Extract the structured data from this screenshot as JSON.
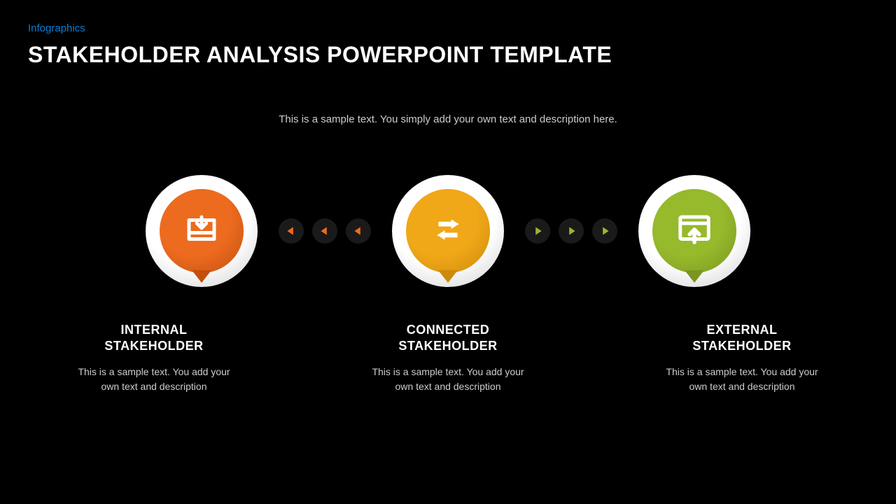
{
  "header": {
    "category": "Infographics",
    "category_color": "#0b7dd4",
    "title": "STAKEHOLDER ANALYSIS POWERPOINT TEMPLATE",
    "title_color": "#ffffff",
    "subtitle": "This is a sample text. You simply add your own text and description here."
  },
  "background_color": "#000000",
  "circle_outer": {
    "diameter": 160,
    "fill": "#ffffff"
  },
  "nodes": [
    {
      "id": "internal",
      "title": "INTERNAL STAKEHOLDER",
      "desc": "This is a sample text. You add your own text and description",
      "bubble_color": "#ed6b1f",
      "bubble_gradient_dark": "#c24f0f",
      "icon": "download-tray",
      "icon_color": "#ffffff"
    },
    {
      "id": "connected",
      "title": "CONNECTED STAKEHOLDER",
      "desc": "This is a sample text. You add your own text and description",
      "bubble_color": "#f0a818",
      "bubble_gradient_dark": "#cc8a0a",
      "icon": "bidirectional-arrows",
      "icon_color": "#ffffff"
    },
    {
      "id": "external",
      "title": "EXTERNAL STAKEHOLDER",
      "desc": "This is a sample text. You add your own text and description",
      "bubble_color": "#97b92c",
      "bubble_gradient_dark": "#7a9620",
      "icon": "upload-window",
      "icon_color": "#ffffff"
    }
  ],
  "connectors": [
    {
      "direction": "left",
      "color": "#ed6b1f",
      "count": 3,
      "dot_bg": "#1a1a1a"
    },
    {
      "direction": "right",
      "color": "#97b92c",
      "count": 3,
      "dot_bg": "#1a1a1a"
    }
  ],
  "label_text_color": "#cccccc"
}
